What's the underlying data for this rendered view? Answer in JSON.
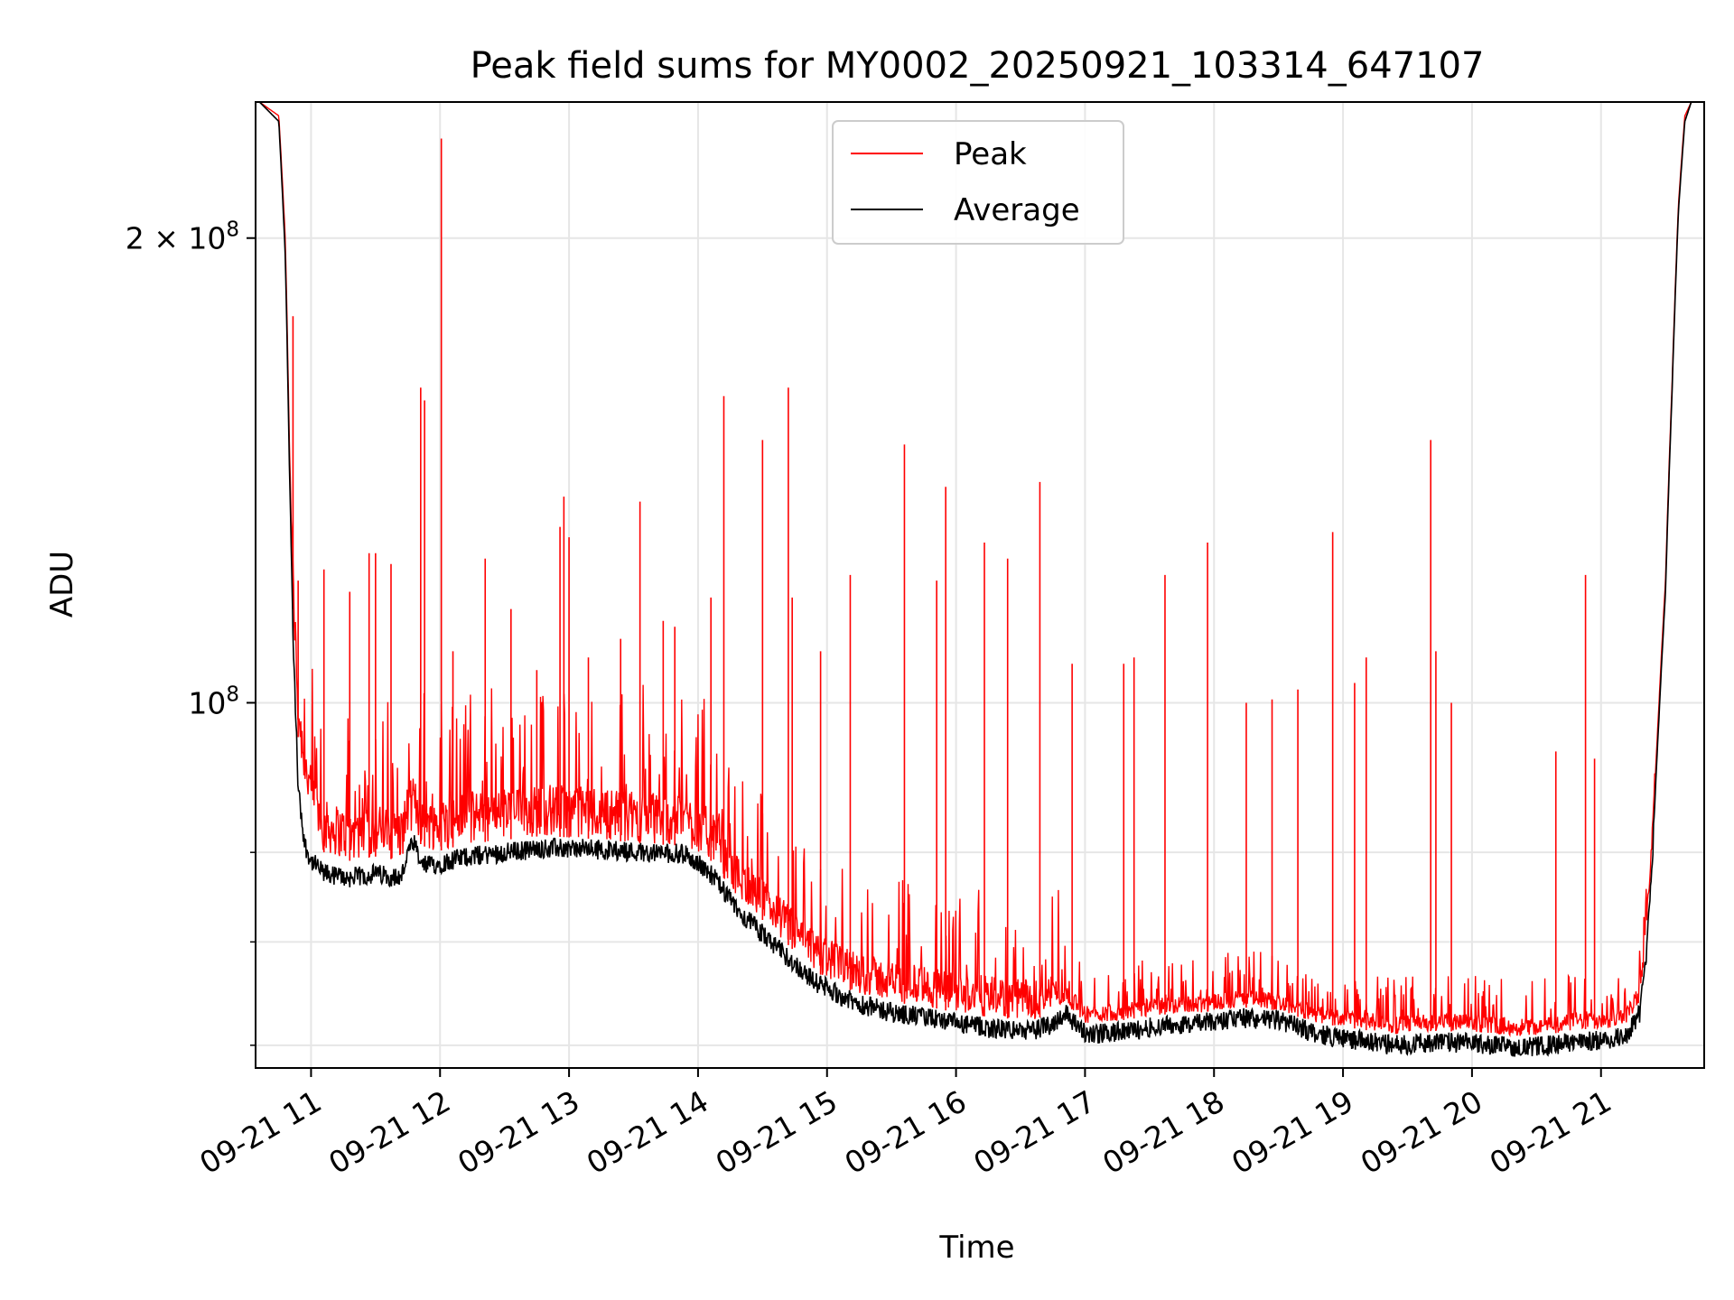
{
  "chart_data": {
    "type": "line",
    "title": "Peak field sums for MY0002_20250921_103314_647107",
    "xlabel": "Time",
    "ylabel": "ADU",
    "yscale": "log",
    "grid": true,
    "legend_position": "upper center",
    "xlim": [
      10.57,
      21.8
    ],
    "ylim": [
      58000000,
      245000000
    ],
    "x_ticks": [
      {
        "value": 11,
        "label": "09-21 11"
      },
      {
        "value": 12,
        "label": "09-21 12"
      },
      {
        "value": 13,
        "label": "09-21 13"
      },
      {
        "value": 14,
        "label": "09-21 14"
      },
      {
        "value": 15,
        "label": "09-21 15"
      },
      {
        "value": 16,
        "label": "09-21 16"
      },
      {
        "value": 17,
        "label": "09-21 17"
      },
      {
        "value": 18,
        "label": "09-21 18"
      },
      {
        "value": 19,
        "label": "09-21 19"
      },
      {
        "value": 20,
        "label": "09-21 20"
      },
      {
        "value": 21,
        "label": "09-21 21"
      }
    ],
    "y_major_ticks": [
      {
        "value": 100000000,
        "base": "10",
        "exp": "8",
        "coef": ""
      },
      {
        "value": 200000000,
        "base": "10",
        "exp": "8",
        "coef": "2 × "
      }
    ],
    "y_minor_ticks": [
      60000000,
      70000000,
      80000000
    ],
    "series": [
      {
        "name": "Peak",
        "color": "#ff0000",
        "x": [
          10.57,
          10.6,
          10.75,
          10.8,
          10.83,
          10.86,
          10.9,
          10.95,
          11.0,
          11.1,
          11.3,
          11.5,
          11.7,
          11.75,
          11.8,
          11.85,
          11.95,
          12.2,
          12.5,
          12.8,
          13.0,
          13.3,
          13.6,
          13.9,
          14.1,
          14.3,
          14.6,
          14.9,
          15.2,
          15.5,
          15.8,
          16.0,
          16.3,
          16.6,
          16.75,
          16.85,
          17.0,
          17.3,
          17.6,
          17.9,
          18.2,
          18.5,
          18.8,
          19.1,
          19.4,
          19.7,
          20.0,
          20.2,
          20.4,
          20.6,
          20.8,
          21.1,
          21.2,
          21.3,
          21.35,
          21.4,
          21.45,
          21.5,
          21.55,
          21.6,
          21.65,
          21.7,
          21.8
        ],
        "y": [
          245000000,
          245000000,
          240000000,
          200000000,
          150000000,
          115000000,
          95000000,
          88000000,
          84000000,
          80000000,
          79000000,
          79500000,
          79000000,
          82000000,
          83000000,
          81000000,
          80000000,
          81000000,
          81500000,
          82000000,
          81800000,
          81500000,
          81000000,
          80800000,
          79000000,
          75000000,
          71000000,
          67000000,
          65000000,
          64000000,
          63500000,
          63000000,
          62500000,
          62300000,
          63000000,
          64000000,
          62000000,
          62300000,
          62800000,
          63000000,
          63500000,
          63200000,
          62000000,
          61500000,
          61000000,
          61300000,
          61200000,
          61000000,
          60800000,
          61000000,
          61400000,
          61600000,
          62000000,
          64000000,
          70000000,
          82000000,
          100000000,
          120000000,
          160000000,
          210000000,
          240000000,
          245000000,
          245000000
        ],
        "spikes": [
          {
            "x": 10.86,
            "y": 178000000
          },
          {
            "x": 10.9,
            "y": 120000000
          },
          {
            "x": 11.1,
            "y": 122000000
          },
          {
            "x": 11.3,
            "y": 118000000
          },
          {
            "x": 11.45,
            "y": 125000000
          },
          {
            "x": 11.5,
            "y": 125000000
          },
          {
            "x": 11.62,
            "y": 123000000
          },
          {
            "x": 11.85,
            "y": 160000000
          },
          {
            "x": 11.88,
            "y": 157000000
          },
          {
            "x": 12.01,
            "y": 232000000
          },
          {
            "x": 12.1,
            "y": 108000000
          },
          {
            "x": 12.35,
            "y": 124000000
          },
          {
            "x": 12.55,
            "y": 115000000
          },
          {
            "x": 12.75,
            "y": 105000000
          },
          {
            "x": 12.93,
            "y": 130000000
          },
          {
            "x": 12.96,
            "y": 136000000
          },
          {
            "x": 13.0,
            "y": 128000000
          },
          {
            "x": 13.15,
            "y": 107000000
          },
          {
            "x": 13.4,
            "y": 110000000
          },
          {
            "x": 13.55,
            "y": 135000000
          },
          {
            "x": 13.73,
            "y": 113000000
          },
          {
            "x": 13.82,
            "y": 112000000
          },
          {
            "x": 14.1,
            "y": 117000000
          },
          {
            "x": 14.2,
            "y": 158000000
          },
          {
            "x": 14.5,
            "y": 148000000
          },
          {
            "x": 14.7,
            "y": 160000000
          },
          {
            "x": 14.73,
            "y": 117000000
          },
          {
            "x": 14.95,
            "y": 108000000
          },
          {
            "x": 15.18,
            "y": 121000000
          },
          {
            "x": 15.6,
            "y": 147000000
          },
          {
            "x": 15.85,
            "y": 120000000
          },
          {
            "x": 15.92,
            "y": 138000000
          },
          {
            "x": 16.22,
            "y": 127000000
          },
          {
            "x": 16.4,
            "y": 124000000
          },
          {
            "x": 16.65,
            "y": 139000000
          },
          {
            "x": 16.9,
            "y": 106000000
          },
          {
            "x": 17.3,
            "y": 106000000
          },
          {
            "x": 17.38,
            "y": 107000000
          },
          {
            "x": 17.62,
            "y": 121000000
          },
          {
            "x": 17.95,
            "y": 127000000
          },
          {
            "x": 18.25,
            "y": 100000000
          },
          {
            "x": 18.45,
            "y": 100500000
          },
          {
            "x": 18.65,
            "y": 102000000
          },
          {
            "x": 18.92,
            "y": 129000000
          },
          {
            "x": 19.09,
            "y": 103000000
          },
          {
            "x": 19.18,
            "y": 107000000
          },
          {
            "x": 19.68,
            "y": 148000000
          },
          {
            "x": 19.72,
            "y": 108000000
          },
          {
            "x": 19.84,
            "y": 100000000
          },
          {
            "x": 20.65,
            "y": 93000000
          },
          {
            "x": 20.88,
            "y": 121000000
          },
          {
            "x": 20.95,
            "y": 92000000
          }
        ]
      },
      {
        "name": "Average",
        "color": "#000000",
        "x": [
          10.57,
          10.6,
          10.75,
          10.8,
          10.83,
          10.86,
          10.9,
          10.95,
          11.0,
          11.1,
          11.3,
          11.5,
          11.7,
          11.75,
          11.8,
          11.85,
          11.95,
          12.2,
          12.5,
          12.8,
          13.0,
          13.3,
          13.6,
          13.9,
          14.1,
          14.3,
          14.6,
          14.9,
          15.2,
          15.5,
          15.8,
          16.0,
          16.3,
          16.6,
          16.75,
          16.85,
          17.0,
          17.3,
          17.6,
          17.9,
          18.2,
          18.5,
          18.8,
          19.1,
          19.4,
          19.7,
          20.0,
          20.2,
          20.4,
          20.6,
          20.8,
          21.1,
          21.2,
          21.3,
          21.35,
          21.4,
          21.45,
          21.5,
          21.55,
          21.6,
          21.65,
          21.7,
          21.8
        ],
        "y": [
          245000000,
          245000000,
          238000000,
          195000000,
          145000000,
          110000000,
          88000000,
          81000000,
          79000000,
          77500000,
          77000000,
          77500000,
          77000000,
          80000000,
          81000000,
          78500000,
          78500000,
          79500000,
          80000000,
          80500000,
          80500000,
          80300000,
          80000000,
          79800000,
          77500000,
          73500000,
          69500000,
          66000000,
          64000000,
          63000000,
          62500000,
          62000000,
          61500000,
          61300000,
          62000000,
          63000000,
          61000000,
          61200000,
          61800000,
          62000000,
          62500000,
          62300000,
          61000000,
          60500000,
          60000000,
          60300000,
          60200000,
          60000000,
          59800000,
          60000000,
          60300000,
          60500000,
          61000000,
          63000000,
          68000000,
          80000000,
          98000000,
          118000000,
          158000000,
          208000000,
          238000000,
          245000000,
          245000000
        ]
      }
    ]
  }
}
